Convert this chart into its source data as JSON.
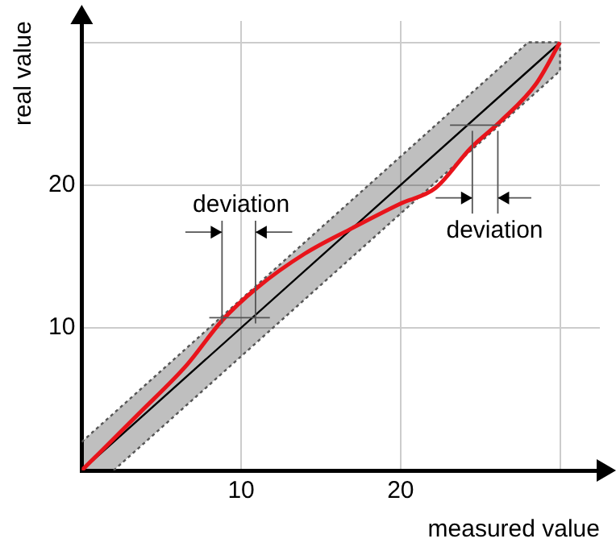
{
  "chart_data": {
    "type": "line",
    "xlabel": "measured value",
    "ylabel": "real value",
    "xlim": [
      0,
      32.5
    ],
    "ylim": [
      0,
      31.5
    ],
    "xticks": [
      10,
      20,
      {
        "value": 30,
        "label": null
      }
    ],
    "yticks": [
      10,
      20,
      {
        "value": 30,
        "label": null
      }
    ],
    "grid": true,
    "legend": false,
    "marker": "none",
    "series": [
      {
        "color": "#000000",
        "x": [
          0,
          2,
          28,
          30
        ],
        "values": [
          0,
          2,
          28,
          30
        ],
        "lower": [
          0,
          0,
          26,
          28
        ],
        "upper": [
          2,
          4,
          30,
          30
        ]
      },
      {
        "color": "#555555",
        "line_style": "dotted",
        "x": [
          0,
          28,
          30
        ],
        "values": [
          2,
          30,
          30
        ]
      },
      {
        "color": "#555555",
        "line_style": "dotted",
        "x": [
          2,
          30,
          30
        ],
        "values": [
          0,
          28,
          30
        ]
      },
      {
        "color": "#e8141b",
        "x": [
          0,
          3.6,
          6.6,
          8.8,
          11,
          14,
          17,
          20,
          22.2,
          24.4,
          26.3,
          28.5,
          30
        ],
        "values": [
          0,
          4,
          7.4,
          10.5,
          12.8,
          15.2,
          17,
          18.7,
          19.8,
          22.6,
          24.5,
          27.1,
          30
        ]
      }
    ],
    "annotations": [
      {
        "text": "deviation",
        "x": 8.8,
        "y": 10.5
      },
      {
        "text": "deviation",
        "x": 26.3,
        "y": 24.5
      }
    ]
  }
}
